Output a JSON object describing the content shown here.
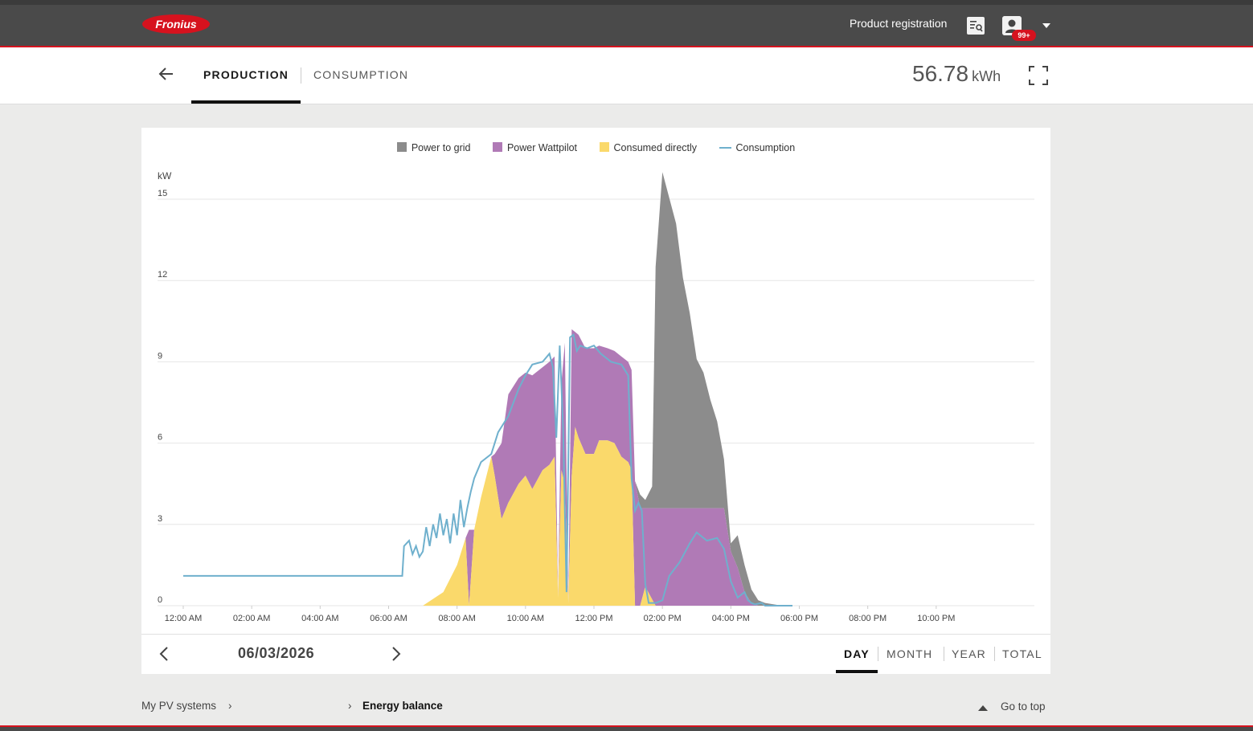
{
  "header": {
    "logo_text": "Fronius",
    "product_registration": "Product registration",
    "notification_badge": "99+"
  },
  "tabs": {
    "production": "PRODUCTION",
    "consumption": "CONSUMPTION"
  },
  "energy_total": {
    "value": "56.78",
    "unit": "kWh"
  },
  "navigation": {
    "date": "06/03/2026",
    "periods": [
      "DAY",
      "MONTH",
      "YEAR",
      "TOTAL"
    ],
    "selected_period": "DAY"
  },
  "footer": {
    "crumb_systems": "My PV systems",
    "crumb_current": "Energy balance",
    "go_to_top": "Go to top"
  },
  "icons": [
    "back-arrow-icon",
    "fullscreen-icon",
    "registration-icon",
    "user-icon",
    "chevron-left-icon",
    "chevron-right-icon",
    "triangle-up-icon"
  ],
  "colors": {
    "accent": "#d6121e",
    "grid": "#8c8c8c",
    "wattpilot": "#b07ab6",
    "direct": "#fad96b",
    "consumption": "#6fb0cd"
  },
  "chart_data": {
    "type": "area",
    "ylabel": "kW",
    "ylim": [
      0,
      15
    ],
    "yticks": [
      0,
      3,
      6,
      9,
      12,
      15
    ],
    "xlim": [
      0,
      24
    ],
    "xticks": [
      "12:00 AM",
      "02:00 AM",
      "04:00 AM",
      "06:00 AM",
      "08:00 AM",
      "10:00 AM",
      "12:00 PM",
      "02:00 PM",
      "04:00 PM",
      "06:00 PM",
      "08:00 PM",
      "10:00 PM"
    ],
    "legend": [
      "Power to grid",
      "Power Wattpilot",
      "Consumed directly",
      "Consumption"
    ],
    "series": [
      {
        "name": "Consumed directly",
        "x": [
          7.0,
          7.6,
          8.0,
          8.25,
          8.35,
          8.5,
          8.7,
          9.0,
          9.1,
          9.3,
          9.5,
          9.8,
          10.0,
          10.2,
          10.5,
          10.7,
          10.85,
          10.95,
          11.05,
          11.15,
          11.25,
          11.35,
          11.45,
          11.55,
          11.75,
          12.0,
          12.15,
          12.4,
          12.6,
          12.8,
          13.0,
          13.1,
          13.2,
          13.35,
          13.5,
          13.8
        ],
        "values": [
          0,
          0.5,
          1.5,
          2.5,
          0,
          2.8,
          4.0,
          5.5,
          4.8,
          3.2,
          3.8,
          4.5,
          4.8,
          4.3,
          5.0,
          5.2,
          5.5,
          0.3,
          5.0,
          4.5,
          0.1,
          4.8,
          6.6,
          6.2,
          5.6,
          5.6,
          6.1,
          6.1,
          6.0,
          5.5,
          5.3,
          5.0,
          0,
          0,
          0.7,
          0
        ]
      },
      {
        "name": "Power Wattpilot",
        "x": [
          7.0,
          8.25,
          8.35,
          8.5,
          8.7,
          9.0,
          9.1,
          9.3,
          9.5,
          9.8,
          10.0,
          10.2,
          10.5,
          10.7,
          10.85,
          10.95,
          11.05,
          11.15,
          11.25,
          11.35,
          11.45,
          11.55,
          11.75,
          12.0,
          12.15,
          12.4,
          12.6,
          12.8,
          13.0,
          13.1,
          13.2,
          13.35,
          13.5,
          13.8,
          14.4,
          15.0,
          15.8,
          16.0,
          16.2,
          16.4,
          16.6,
          16.8,
          17.0
        ],
        "values": [
          0,
          0,
          2.8,
          0,
          0,
          0,
          0.8,
          2.8,
          4.0,
          3.9,
          3.8,
          4.2,
          3.8,
          3.8,
          3.7,
          0,
          3.2,
          5.2,
          0,
          5.4,
          3.5,
          3.8,
          3.9,
          3.9,
          3.5,
          3.4,
          3.4,
          3.7,
          3.7,
          3.7,
          4.6,
          3.6,
          2.9,
          3.6,
          3.6,
          3.6,
          3.6,
          2.0,
          1.4,
          0.5,
          0.1,
          0,
          0
        ]
      },
      {
        "name": "Power to grid",
        "x": [
          7.0,
          13.1,
          13.2,
          13.35,
          13.5,
          13.7,
          13.8,
          14.0,
          14.4,
          14.6,
          14.8,
          15.0,
          15.2,
          15.4,
          15.6,
          15.8,
          16.0,
          16.2,
          16.4,
          16.6,
          16.8,
          17.0,
          17.5
        ],
        "values": [
          0,
          0,
          0,
          0.5,
          0.3,
          0.8,
          8.9,
          12.4,
          10.5,
          8.5,
          7.2,
          5.5,
          5.0,
          4.0,
          3.2,
          1.8,
          0.3,
          1.2,
          1.0,
          0.5,
          0.2,
          0.1,
          0
        ]
      },
      {
        "name": "Consumption",
        "x": [
          0.0,
          6.4,
          6.45,
          6.6,
          6.7,
          6.8,
          6.9,
          7.0,
          7.1,
          7.2,
          7.3,
          7.4,
          7.5,
          7.6,
          7.7,
          7.8,
          7.9,
          8.0,
          8.1,
          8.2,
          8.3,
          8.4,
          8.5,
          8.7,
          9.0,
          9.2,
          9.5,
          9.8,
          10.0,
          10.2,
          10.5,
          10.7,
          10.8,
          10.9,
          11.0,
          11.1,
          11.2,
          11.3,
          11.4,
          11.5,
          11.6,
          11.8,
          12.0,
          12.2,
          12.5,
          12.8,
          13.0,
          13.1,
          13.2,
          13.3,
          13.4,
          13.5,
          13.6,
          13.8,
          14.0,
          14.2,
          14.5,
          14.8,
          15.0,
          15.3,
          15.6,
          15.8,
          16.0,
          16.2,
          16.4,
          16.5,
          16.6,
          16.7,
          16.9,
          17.0,
          17.3,
          17.8
        ],
        "values": [
          1.1,
          1.1,
          2.2,
          2.4,
          1.9,
          2.2,
          1.8,
          2.0,
          2.9,
          2.2,
          3.0,
          2.5,
          3.4,
          2.6,
          3.2,
          2.3,
          3.4,
          2.6,
          3.9,
          2.9,
          3.6,
          4.2,
          4.7,
          5.3,
          5.6,
          6.4,
          7.0,
          8.0,
          8.5,
          8.9,
          9.0,
          9.3,
          8.8,
          6.2,
          9.6,
          6.5,
          0.5,
          9.9,
          10.0,
          9.4,
          9.6,
          9.5,
          9.6,
          9.3,
          9.0,
          8.9,
          8.5,
          4.7,
          3.5,
          3.8,
          3.5,
          0.8,
          0.1,
          0.1,
          0.2,
          1.1,
          1.6,
          2.3,
          2.7,
          2.4,
          2.5,
          2.1,
          0.9,
          0.3,
          0.5,
          0.2,
          0.1,
          0.05,
          0.1,
          0.0,
          0.0,
          0.0
        ]
      }
    ]
  }
}
